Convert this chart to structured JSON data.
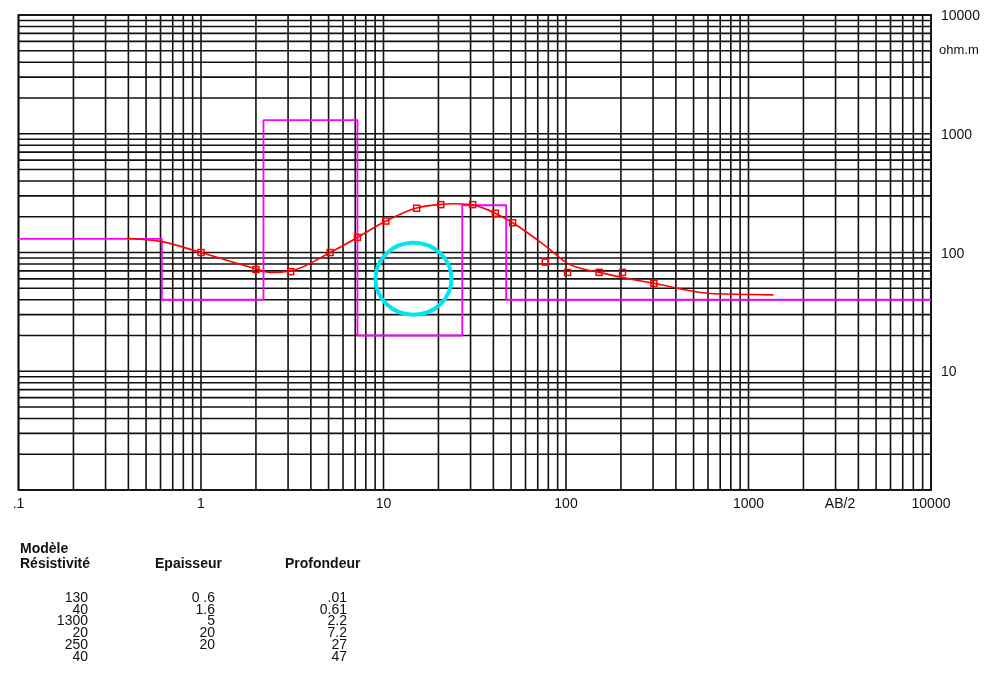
{
  "chart_data": {
    "type": "line",
    "xlabel": "AB/2",
    "ylabel": "ohm.m",
    "log": "xy",
    "grid": true,
    "xlim": [
      0.1,
      10000
    ],
    "ylim": [
      1,
      10000
    ],
    "xticks": [
      {
        "value": 0.1,
        "label": ".1"
      },
      {
        "value": 0.2,
        "label": null
      },
      {
        "value": 0.3,
        "label": null
      },
      {
        "value": 0.4,
        "label": null
      },
      {
        "value": 0.5,
        "label": null
      },
      {
        "value": 0.6,
        "label": null
      },
      {
        "value": 0.7,
        "label": null
      },
      {
        "value": 0.8,
        "label": null
      },
      {
        "value": 0.9,
        "label": null
      },
      1,
      {
        "value": 2,
        "label": null
      },
      {
        "value": 3,
        "label": null
      },
      {
        "value": 4,
        "label": null
      },
      {
        "value": 5,
        "label": null
      },
      {
        "value": 6,
        "label": null
      },
      {
        "value": 7,
        "label": null
      },
      {
        "value": 8,
        "label": null
      },
      {
        "value": 9,
        "label": null
      },
      10,
      {
        "value": 20,
        "label": null
      },
      {
        "value": 30,
        "label": null
      },
      {
        "value": 40,
        "label": null
      },
      {
        "value": 50,
        "label": null
      },
      {
        "value": 60,
        "label": null
      },
      {
        "value": 70,
        "label": null
      },
      {
        "value": 80,
        "label": null
      },
      {
        "value": 90,
        "label": null
      },
      100,
      {
        "value": 200,
        "label": null
      },
      {
        "value": 300,
        "label": null
      },
      {
        "value": 400,
        "label": null
      },
      {
        "value": 500,
        "label": null
      },
      {
        "value": 600,
        "label": null
      },
      {
        "value": 700,
        "label": null
      },
      {
        "value": 800,
        "label": null
      },
      {
        "value": 900,
        "label": null
      },
      1000,
      {
        "value": 2000,
        "label": null
      },
      {
        "value": 3000,
        "label": null
      },
      {
        "value": 4000,
        "label": null
      },
      {
        "value": 5000,
        "label": null
      },
      {
        "value": 6000,
        "label": null
      },
      {
        "value": 7000,
        "label": null
      },
      {
        "value": 8000,
        "label": null
      },
      {
        "value": 9000,
        "label": null
      },
      10000
    ],
    "yticks": [
      {
        "value": 1,
        "label": null
      },
      {
        "value": 2,
        "label": null
      },
      {
        "value": 3,
        "label": null
      },
      {
        "value": 4,
        "label": null
      },
      {
        "value": 5,
        "label": null
      },
      {
        "value": 6,
        "label": null
      },
      {
        "value": 7,
        "label": null
      },
      {
        "value": 8,
        "label": null
      },
      {
        "value": 9,
        "label": null
      },
      10,
      {
        "value": 20,
        "label": null
      },
      {
        "value": 30,
        "label": null
      },
      {
        "value": 40,
        "label": null
      },
      {
        "value": 50,
        "label": null
      },
      {
        "value": 60,
        "label": null
      },
      {
        "value": 70,
        "label": null
      },
      {
        "value": 80,
        "label": null
      },
      {
        "value": 90,
        "label": null
      },
      100,
      {
        "value": 200,
        "label": null
      },
      {
        "value": 300,
        "label": null
      },
      {
        "value": 400,
        "label": null
      },
      {
        "value": 500,
        "label": null
      },
      {
        "value": 600,
        "label": null
      },
      {
        "value": 700,
        "label": null
      },
      {
        "value": 800,
        "label": null
      },
      {
        "value": 900,
        "label": null
      },
      1000,
      {
        "value": 2000,
        "label": null
      },
      {
        "value": 3000,
        "label": null
      },
      {
        "value": 4000,
        "label": null
      },
      {
        "value": 5000,
        "label": null
      },
      {
        "value": 6000,
        "label": null
      },
      {
        "value": 7000,
        "label": null
      },
      {
        "value": 8000,
        "label": null
      },
      {
        "value": 9000,
        "label": null
      },
      10000
    ],
    "series": [
      {
        "type": "step",
        "color": "#ff00ff",
        "x": [
          0.1,
          0.61,
          2.2,
          7.2,
          27,
          47,
          10000
        ],
        "values": [
          130,
          40,
          1300,
          20,
          250,
          40,
          40
        ]
      },
      {
        "color": "#ff0000",
        "x": [
          0.39,
          0.6,
          1.0,
          2.0,
          2.4,
          3.1,
          5.1,
          7.2,
          10.3,
          15,
          20,
          24,
          30,
          41,
          51,
          78,
          102,
          152,
          303,
          641,
          1370
        ],
        "values": [
          132,
          124,
          100,
          73,
          68,
          70,
          100,
          134,
          184,
          236,
          253,
          257,
          253,
          214,
          178,
          112,
          81,
          68,
          55,
          45,
          44
        ]
      },
      {
        "type": "scatter",
        "color": "#ff0000",
        "marker": "square",
        "x": [
          1.0,
          2.0,
          3.1,
          5.1,
          7.2,
          10.3,
          15.2,
          20.6,
          30.8,
          41,
          51,
          77,
          102,
          152,
          204,
          303
        ],
        "values": [
          100,
          72,
          69,
          100,
          134,
          184,
          236,
          253,
          253,
          214,
          178,
          83,
          68,
          68,
          68,
          55
        ]
      }
    ],
    "annotations": [
      "Modèle",
      "Résistivité",
      "Epaisseur",
      "Profondeur",
      "130\n40\n1300\n20\n250\n40",
      "0 .6\n1.6\n5\n20\n20",
      ".01\n0.61\n2.2\n7.2\n27\n47"
    ]
  }
}
